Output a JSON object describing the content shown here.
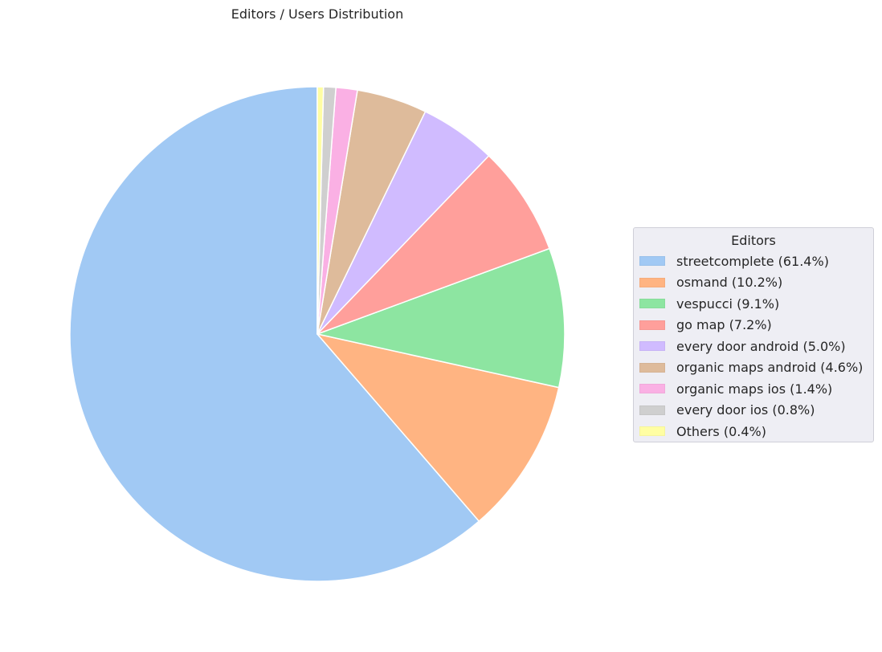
{
  "chart_data": {
    "type": "pie",
    "title": "Editors / Users Distribution",
    "legend_title": "Editors",
    "legend_position": "center-right",
    "start": "top",
    "direction": "counterclockwise",
    "slices": [
      {
        "name": "streetcomplete",
        "value": 61.4,
        "label": "streetcomplete (61.4%)",
        "color": "#a1c9f4"
      },
      {
        "name": "osmand",
        "value": 10.2,
        "label": "osmand (10.2%)",
        "color": "#ffb482"
      },
      {
        "name": "vespucci",
        "value": 9.1,
        "label": "vespucci (9.1%)",
        "color": "#8de5a1"
      },
      {
        "name": "go map",
        "value": 7.2,
        "label": "go map (7.2%)",
        "color": "#ff9f9b"
      },
      {
        "name": "every door android",
        "value": 5.0,
        "label": "every door android (5.0%)",
        "color": "#d0bbff"
      },
      {
        "name": "organic maps android",
        "value": 4.6,
        "label": "organic maps android (4.6%)",
        "color": "#debb9b"
      },
      {
        "name": "organic maps ios",
        "value": 1.4,
        "label": "organic maps ios (1.4%)",
        "color": "#fab0e4"
      },
      {
        "name": "every door ios",
        "value": 0.8,
        "label": "every door ios (0.8%)",
        "color": "#cfcfcf"
      },
      {
        "name": "Others",
        "value": 0.4,
        "label": "Others (0.4%)",
        "color": "#fffea3"
      }
    ]
  }
}
